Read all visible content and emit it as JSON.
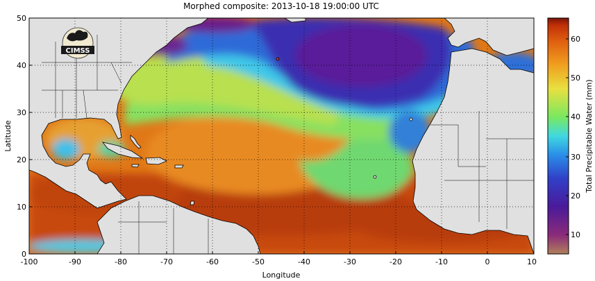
{
  "title": "Morphed composite: 2013-10-18 19:00:00 UTC",
  "x_axis": {
    "label": "Longitude",
    "ticks": [
      "-100",
      "-90",
      "-80",
      "-70",
      "-60",
      "-50",
      "-40",
      "-30",
      "-20",
      "-10",
      "0",
      "10"
    ]
  },
  "y_axis": {
    "label": "Latitude",
    "ticks": [
      "0",
      "10",
      "20",
      "30",
      "40",
      "50"
    ]
  },
  "colorbar": {
    "label": "Total Precipitable Water (mm)",
    "ticks": [
      "10",
      "20",
      "30",
      "40",
      "50",
      "60"
    ],
    "range": [
      5,
      65
    ],
    "colors": [
      "#b0805a",
      "#8a2b7a",
      "#4a1a9a",
      "#3040c8",
      "#2a8ee8",
      "#40d8e0",
      "#7ae860",
      "#e8e040",
      "#f0a020",
      "#e06010",
      "#c03008",
      "#7a1408"
    ]
  },
  "logo": {
    "text": "CIMSS",
    "name": "cimss-logo"
  },
  "map": {
    "lon_range": [
      -100,
      10
    ],
    "lat_range": [
      0,
      50
    ],
    "grid": "dotted",
    "land_color": "#e0e0e0"
  }
}
